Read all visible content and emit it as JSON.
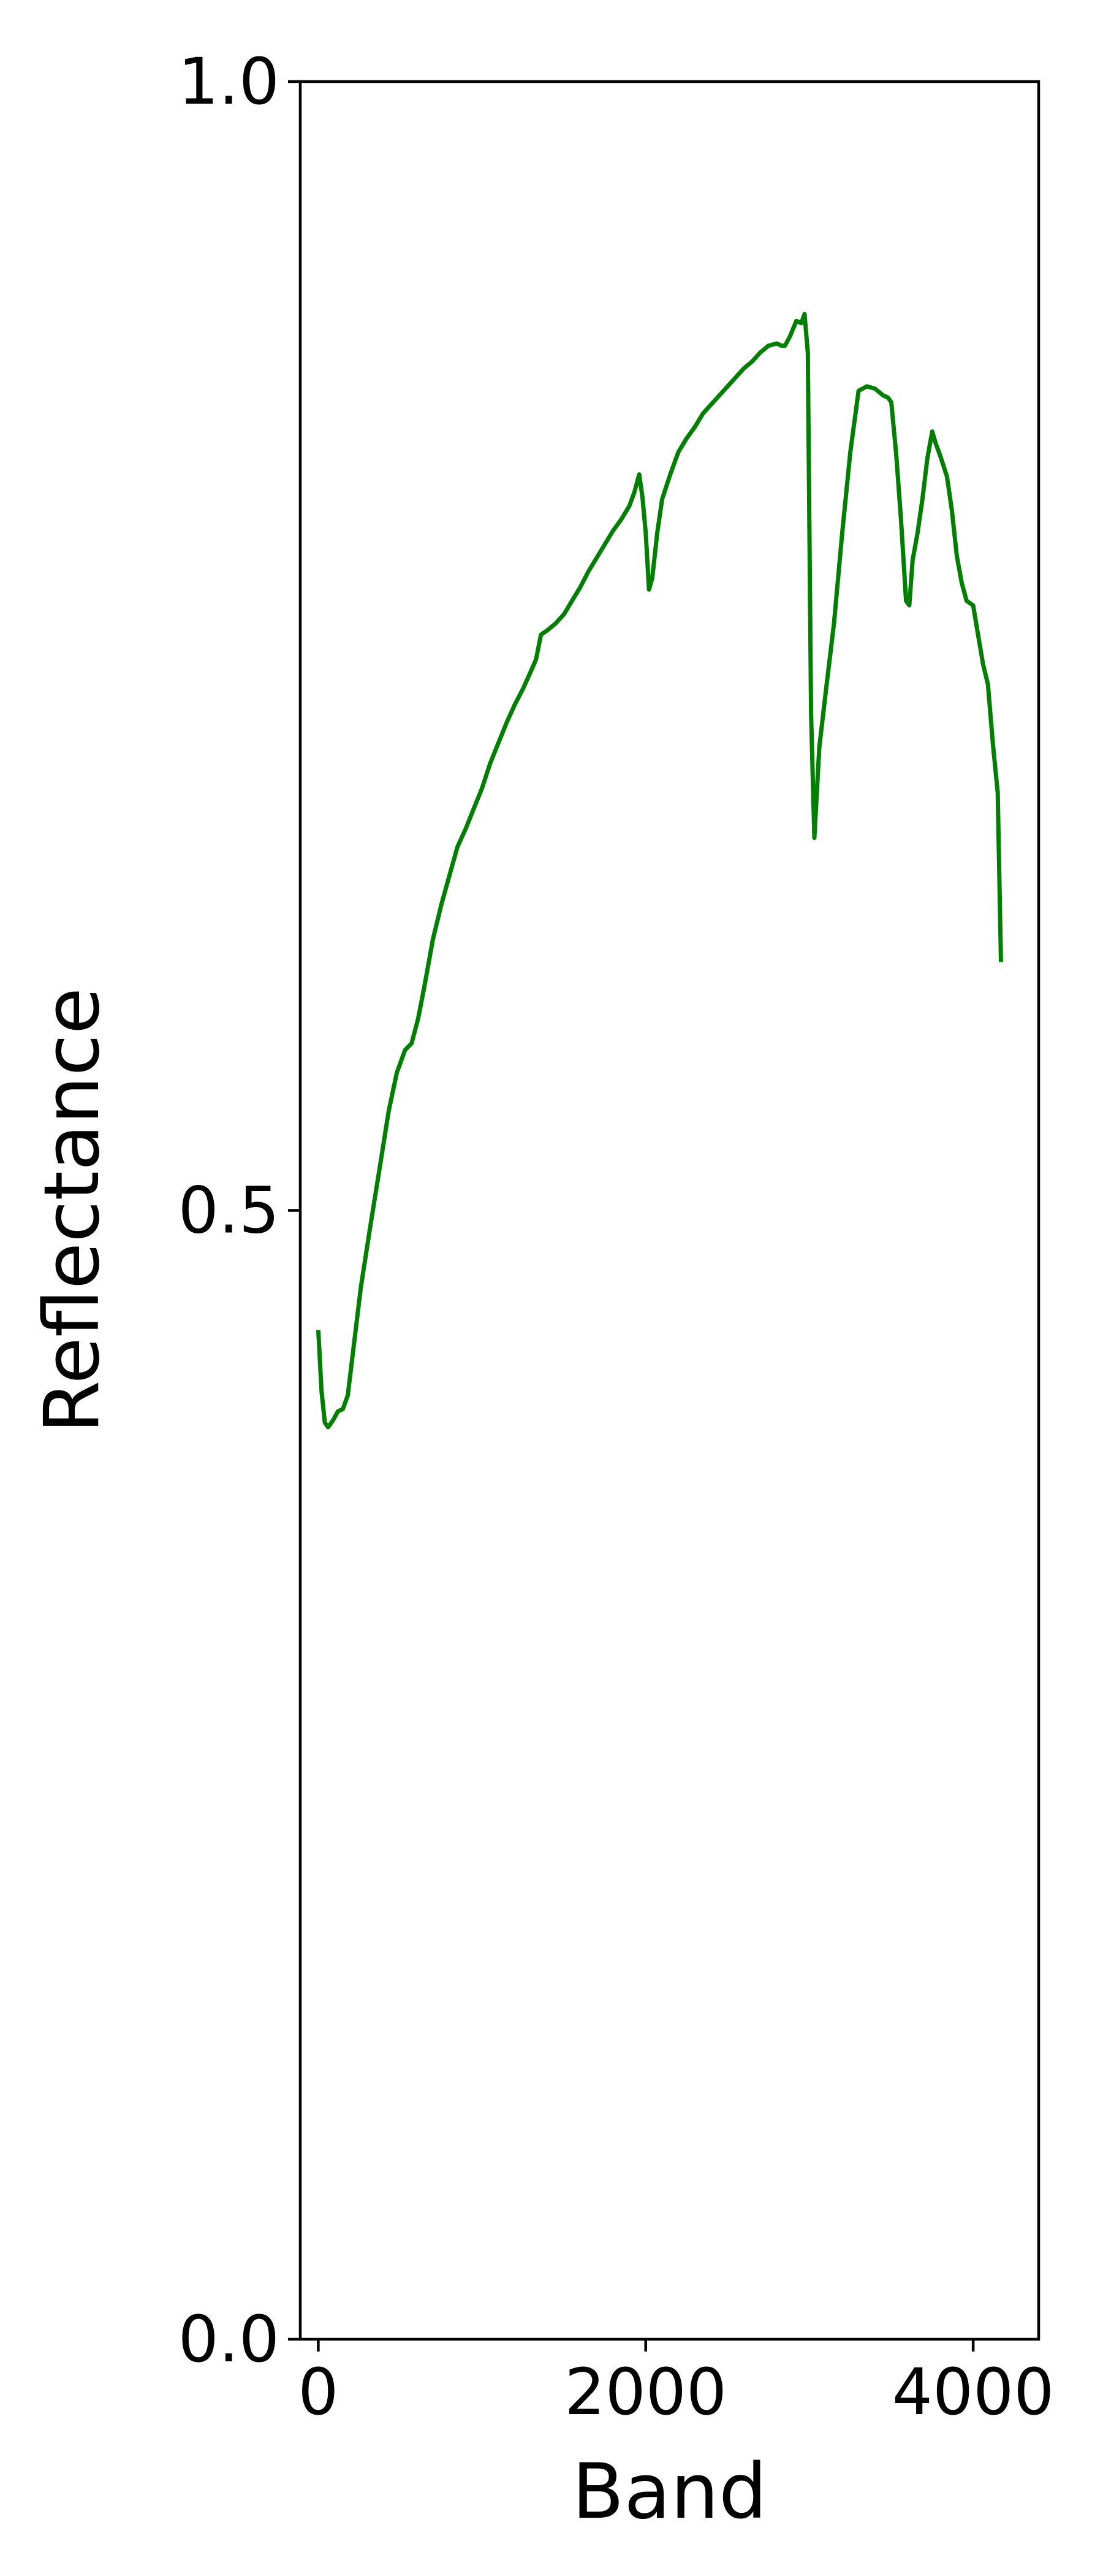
{
  "chart_data": {
    "type": "line",
    "title": "",
    "xlabel": "Band",
    "ylabel": "Reflectance",
    "xlim": [
      -110,
      4400
    ],
    "ylim": [
      0.0,
      1.0
    ],
    "grid": false,
    "x_ticks": [
      0,
      2000,
      4000
    ],
    "x_tick_labels": [
      "0",
      "2000",
      "4000"
    ],
    "y_ticks": [
      0.0,
      0.5,
      1.0
    ],
    "y_tick_labels": [
      "0.0",
      "0.5",
      "1.0"
    ],
    "series": [
      {
        "color": "#008000",
        "points": [
          [
            0,
            0.447
          ],
          [
            20,
            0.42
          ],
          [
            40,
            0.406
          ],
          [
            60,
            0.404
          ],
          [
            90,
            0.407
          ],
          [
            120,
            0.411
          ],
          [
            150,
            0.412
          ],
          [
            180,
            0.418
          ],
          [
            220,
            0.442
          ],
          [
            260,
            0.466
          ],
          [
            320,
            0.494
          ],
          [
            380,
            0.521
          ],
          [
            430,
            0.544
          ],
          [
            480,
            0.561
          ],
          [
            530,
            0.571
          ],
          [
            570,
            0.574
          ],
          [
            610,
            0.585
          ],
          [
            650,
            0.6
          ],
          [
            700,
            0.62
          ],
          [
            750,
            0.635
          ],
          [
            800,
            0.648
          ],
          [
            850,
            0.661
          ],
          [
            900,
            0.669
          ],
          [
            950,
            0.678
          ],
          [
            1000,
            0.687
          ],
          [
            1050,
            0.698
          ],
          [
            1100,
            0.707
          ],
          [
            1150,
            0.716
          ],
          [
            1200,
            0.724
          ],
          [
            1250,
            0.731
          ],
          [
            1300,
            0.739
          ],
          [
            1330,
            0.744
          ],
          [
            1360,
            0.755
          ],
          [
            1400,
            0.757
          ],
          [
            1450,
            0.76
          ],
          [
            1500,
            0.764
          ],
          [
            1550,
            0.77
          ],
          [
            1600,
            0.776
          ],
          [
            1650,
            0.783
          ],
          [
            1700,
            0.789
          ],
          [
            1750,
            0.795
          ],
          [
            1800,
            0.801
          ],
          [
            1850,
            0.806
          ],
          [
            1900,
            0.812
          ],
          [
            1930,
            0.818
          ],
          [
            1960,
            0.826
          ],
          [
            1980,
            0.816
          ],
          [
            2000,
            0.8
          ],
          [
            2020,
            0.775
          ],
          [
            2040,
            0.78
          ],
          [
            2070,
            0.8
          ],
          [
            2100,
            0.815
          ],
          [
            2150,
            0.826
          ],
          [
            2200,
            0.836
          ],
          [
            2250,
            0.842
          ],
          [
            2300,
            0.847
          ],
          [
            2350,
            0.853
          ],
          [
            2400,
            0.857
          ],
          [
            2450,
            0.861
          ],
          [
            2500,
            0.865
          ],
          [
            2550,
            0.869
          ],
          [
            2600,
            0.873
          ],
          [
            2650,
            0.876
          ],
          [
            2700,
            0.88
          ],
          [
            2750,
            0.883
          ],
          [
            2800,
            0.884
          ],
          [
            2830,
            0.883
          ],
          [
            2850,
            0.883
          ],
          [
            2880,
            0.887
          ],
          [
            2920,
            0.894
          ],
          [
            2950,
            0.893
          ],
          [
            2970,
            0.897
          ],
          [
            2990,
            0.88
          ],
          [
            3010,
            0.72
          ],
          [
            3030,
            0.665
          ],
          [
            3060,
            0.705
          ],
          [
            3100,
            0.73
          ],
          [
            3150,
            0.76
          ],
          [
            3200,
            0.8
          ],
          [
            3250,
            0.836
          ],
          [
            3300,
            0.863
          ],
          [
            3350,
            0.865
          ],
          [
            3400,
            0.864
          ],
          [
            3450,
            0.861
          ],
          [
            3480,
            0.86
          ],
          [
            3500,
            0.858
          ],
          [
            3530,
            0.835
          ],
          [
            3560,
            0.805
          ],
          [
            3590,
            0.77
          ],
          [
            3610,
            0.768
          ],
          [
            3630,
            0.788
          ],
          [
            3660,
            0.8
          ],
          [
            3690,
            0.815
          ],
          [
            3720,
            0.833
          ],
          [
            3750,
            0.845
          ],
          [
            3770,
            0.84
          ],
          [
            3800,
            0.834
          ],
          [
            3840,
            0.825
          ],
          [
            3870,
            0.81
          ],
          [
            3900,
            0.79
          ],
          [
            3930,
            0.778
          ],
          [
            3960,
            0.77
          ],
          [
            4000,
            0.768
          ],
          [
            4030,
            0.755
          ],
          [
            4060,
            0.742
          ],
          [
            4090,
            0.733
          ],
          [
            4120,
            0.707
          ],
          [
            4150,
            0.685
          ],
          [
            4170,
            0.61
          ]
        ]
      }
    ]
  }
}
